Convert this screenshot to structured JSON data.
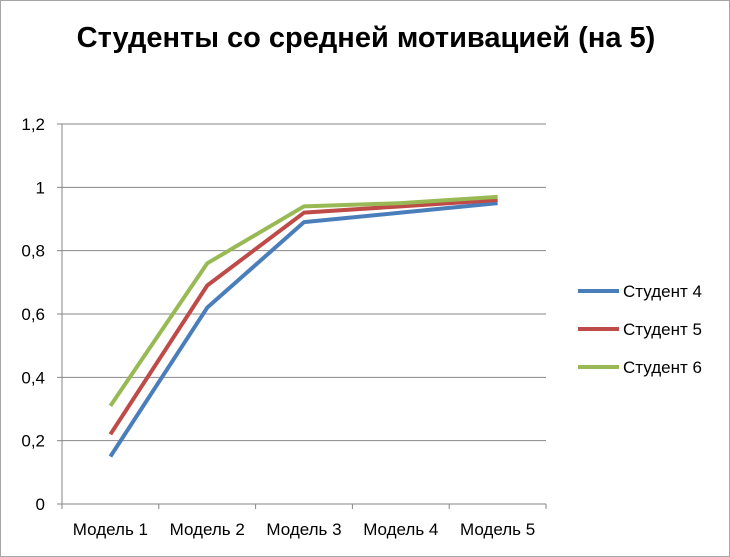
{
  "chart_data": {
    "type": "line",
    "title": "Студенты со средней мотивацией (на 5)",
    "categories": [
      "Модель 1",
      "Модель 2",
      "Модель 3",
      "Модель 4",
      "Модель 5"
    ],
    "yticks": [
      "0",
      "0,2",
      "0,4",
      "0,6",
      "0,8",
      "1",
      "1,2"
    ],
    "ylim": [
      0,
      1.2
    ],
    "grid": true,
    "legend_position": "right",
    "series": [
      {
        "name": "Студент 4",
        "color": "#4a7ebb",
        "values": [
          0.15,
          0.62,
          0.89,
          0.92,
          0.95
        ]
      },
      {
        "name": "Студент 5",
        "color": "#be4b48",
        "values": [
          0.22,
          0.69,
          0.92,
          0.94,
          0.96
        ]
      },
      {
        "name": "Студент 6",
        "color": "#98b954",
        "values": [
          0.31,
          0.76,
          0.94,
          0.95,
          0.97
        ]
      }
    ]
  }
}
